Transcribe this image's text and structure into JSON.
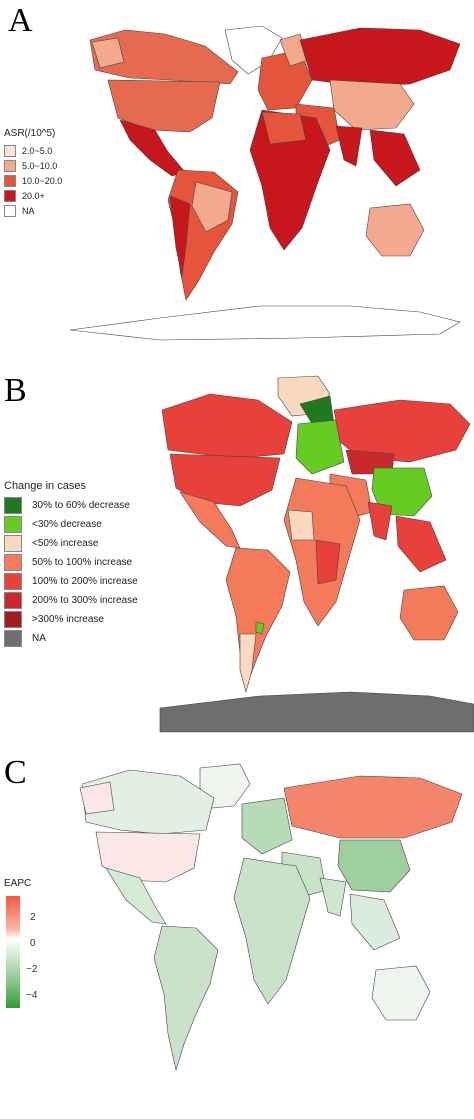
{
  "panels": [
    {
      "letter": "A",
      "legend_title": "ASR(/10^5)",
      "legend": [
        {
          "label": "2.0~5.0",
          "color": "#fbe3dc"
        },
        {
          "label": "5.0~10.0",
          "color": "#f4a98f"
        },
        {
          "label": "10.0~20.0",
          "color": "#e4553c"
        },
        {
          "label": "20.0+",
          "color": "#c8161d"
        },
        {
          "label": "NA",
          "color": "#ffffff"
        }
      ]
    },
    {
      "letter": "B",
      "legend_title": "Change in cases",
      "legend": [
        {
          "label": "30% to 60% decrease",
          "color": "#1f7a1f"
        },
        {
          "label": "<30% decrease",
          "color": "#66cc22"
        },
        {
          "label": "<50% increase",
          "color": "#fbd9c0"
        },
        {
          "label": "50% to 100% increase",
          "color": "#f37a5a"
        },
        {
          "label": "100% to 200% increase",
          "color": "#e8403a"
        },
        {
          "label": "200% to 300% increase",
          "color": "#c9282c"
        },
        {
          "label": ">300% increase",
          "color": "#a31b1f"
        },
        {
          "label": "NA",
          "color": "#6e6e6e"
        }
      ]
    },
    {
      "letter": "C",
      "legend_title": "EAPC",
      "ticks": [
        "2",
        "0",
        "−2",
        "−4"
      ],
      "tick_values": [
        2,
        0,
        -2,
        -4
      ],
      "scale_range": [
        -5.2,
        3.2
      ],
      "scale_colors": {
        "high": "#f4583e",
        "mid": "#ffffff",
        "low": "#2f9a2f"
      }
    }
  ]
}
